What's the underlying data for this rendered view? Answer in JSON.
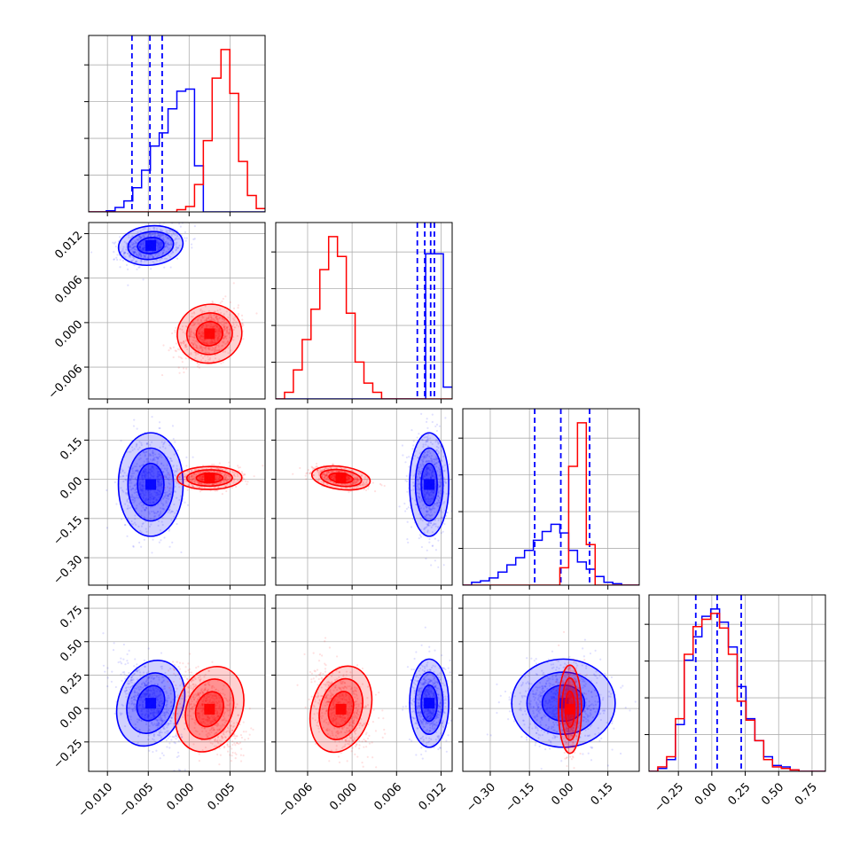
{
  "chart_data": {
    "type": "corner",
    "parameters": 4,
    "grid": true,
    "colors": {
      "run_a": "#0000ff",
      "run_b": "#ff0000"
    },
    "ranges": [
      [
        -0.0123,
        0.0093
      ],
      [
        -0.0103,
        0.0135
      ],
      [
        -0.405,
        0.27
      ],
      [
        -0.47,
        0.85
      ]
    ],
    "ticks": [
      {
        "values": [
          -0.01,
          -0.005,
          0.0,
          0.005
        ],
        "labels": [
          "−0.010",
          "−0.005",
          "0.000",
          "0.005"
        ]
      },
      {
        "values": [
          -0.006,
          0.0,
          0.006,
          0.012
        ],
        "labels": [
          "−0.006",
          "0.000",
          "0.006",
          "0.012"
        ]
      },
      {
        "values": [
          -0.3,
          -0.15,
          0.0,
          0.15
        ],
        "labels": [
          "−0.30",
          "−0.15",
          "0.00",
          "0.15"
        ]
      },
      {
        "values": [
          -0.25,
          0.0,
          0.25,
          0.5,
          0.75
        ],
        "labels": [
          "−0.25",
          "0.00",
          "0.25",
          "0.50",
          "0.75"
        ]
      }
    ],
    "series": [
      {
        "color": "#0000ff",
        "mean": [
          -0.0047,
          0.0104,
          -0.02,
          0.04
        ],
        "sd": [
          0.0018,
          0.0012,
          0.09,
          0.15
        ],
        "quantiles": [
          [
            -0.007,
            -0.0048,
            -0.0033
          ],
          [
            0.0088,
            0.0098,
            0.0106,
            0.0111
          ],
          [
            -0.13,
            -0.03,
            0.08
          ],
          [
            -0.12,
            0.04,
            0.22
          ]
        ],
        "histograms": [
          {
            "edges_from": -0.0123,
            "edges_to": 0.0093,
            "counts": [
              0,
              0,
              1,
              4,
              10,
              22,
              38,
              60,
              72,
              94,
              110,
              112,
              42,
              0,
              0,
              0,
              0,
              0,
              0,
              0
            ]
          },
          {
            "edges_from": -0.0103,
            "edges_to": 0.0135,
            "counts": [
              0,
              0,
              0,
              0,
              0,
              0,
              0,
              0,
              0,
              0,
              0,
              0,
              0,
              0,
              0,
              0,
              0,
              110,
              110,
              9
            ]
          },
          {
            "edges_from": -0.405,
            "edges_to": 0.27,
            "counts": [
              0,
              2,
              3,
              5,
              9,
              14,
              19,
              24,
              31,
              37,
              42,
              36,
              24,
              16,
              11,
              6,
              2,
              1,
              0,
              0
            ]
          },
          {
            "edges_from": -0.47,
            "edges_to": 0.85,
            "counts": [
              0,
              2,
              8,
              32,
              76,
              92,
              106,
              111,
              102,
              85,
              58,
              36,
              21,
              10,
              4,
              3,
              1,
              0,
              0,
              0
            ]
          }
        ]
      },
      {
        "color": "#ff0000",
        "mean": [
          0.0025,
          -0.0015,
          0.005,
          -0.005
        ],
        "sd": [
          0.0018,
          0.0018,
          0.02,
          0.15
        ],
        "quantiles": [],
        "histograms": [
          {
            "edges_from": -0.0123,
            "edges_to": 0.0093,
            "counts": [
              0,
              0,
              0,
              0,
              0,
              0,
              0,
              0,
              0,
              0,
              2,
              5,
              25,
              65,
              122,
              148,
              108,
              46,
              15,
              3
            ]
          },
          {
            "edges_from": -0.0103,
            "edges_to": 0.0135,
            "counts": [
              0,
              5,
              22,
              45,
              68,
              98,
              123,
              108,
              65,
              28,
              12,
              5,
              0,
              0,
              0,
              0,
              0,
              0,
              0,
              0
            ]
          },
          {
            "edges_from": -0.405,
            "edges_to": 0.27,
            "counts": [
              0,
              0,
              0,
              0,
              0,
              0,
              0,
              0,
              0,
              0,
              0,
              12,
              82,
              112,
              28,
              0,
              0,
              0,
              0,
              0
            ]
          },
          {
            "edges_from": -0.47,
            "edges_to": 0.85,
            "counts": [
              0,
              3,
              10,
              36,
              80,
              99,
              104,
              108,
              98,
              80,
              48,
              35,
              21,
              8,
              3,
              2,
              1,
              0,
              0,
              0
            ]
          }
        ]
      }
    ]
  }
}
